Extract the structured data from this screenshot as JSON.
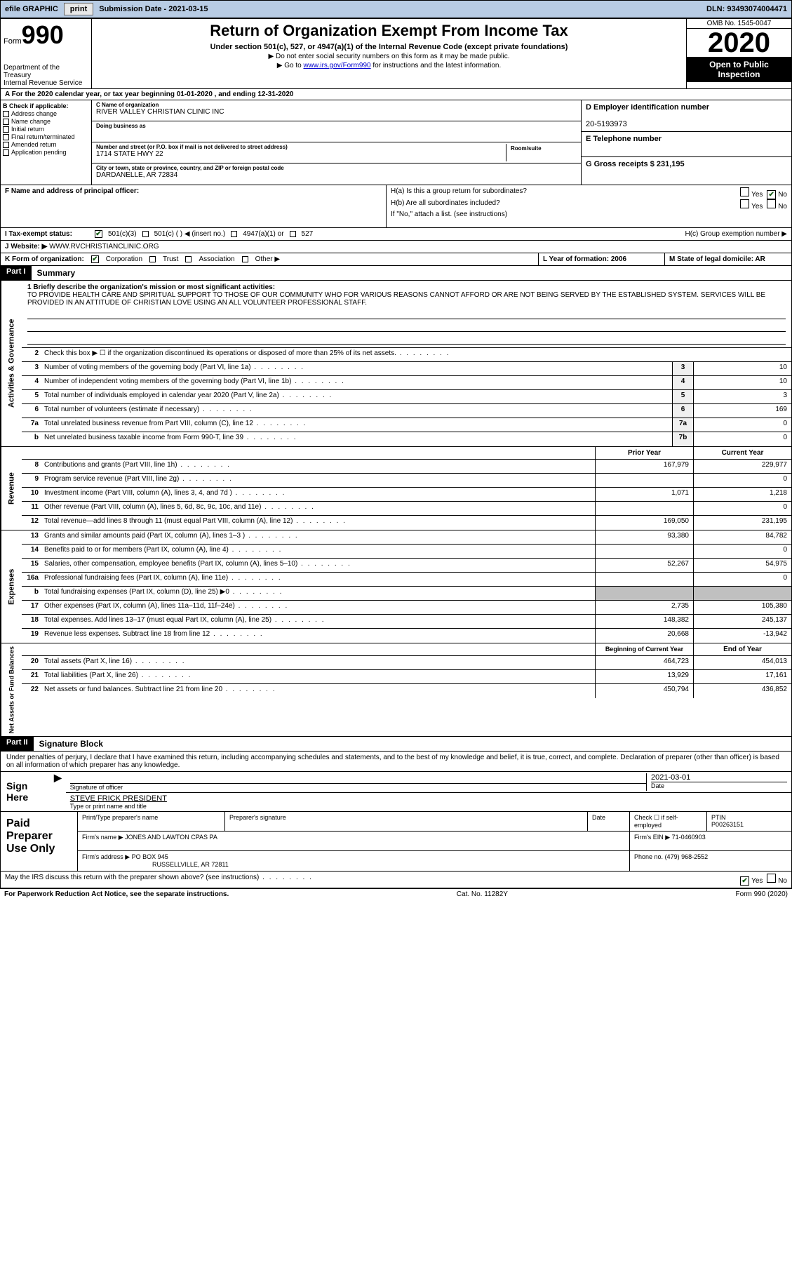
{
  "topbar": {
    "efile": "efile GRAPHIC",
    "print": "print",
    "submission": "Submission Date - 2021-03-15",
    "dln": "DLN: 93493074004471"
  },
  "header": {
    "form_word": "Form",
    "form_num": "990",
    "dept": "Department of the Treasury\nInternal Revenue Service",
    "title": "Return of Organization Exempt From Income Tax",
    "sub": "Under section 501(c), 527, or 4947(a)(1) of the Internal Revenue Code (except private foundations)",
    "line1": "▶ Do not enter social security numbers on this form as it may be made public.",
    "line2_pre": "▶ Go to ",
    "line2_link": "www.irs.gov/Form990",
    "line2_post": " for instructions and the latest information.",
    "omb": "OMB No. 1545-0047",
    "year": "2020",
    "open": "Open to Public Inspection"
  },
  "line_a": "A   For the 2020 calendar year, or tax year beginning 01-01-2020     , and ending 12-31-2020",
  "box_b": {
    "title": "B Check if applicable:",
    "items": [
      "Address change",
      "Name change",
      "Initial return",
      "Final return/terminated",
      "Amended return",
      "Application pending"
    ]
  },
  "box_c": {
    "c_label": "C Name of organization",
    "org": "RIVER VALLEY CHRISTIAN CLINIC INC",
    "dba": "Doing business as",
    "addr_label": "Number and street (or P.O. box if mail is not delivered to street address)",
    "addr": "1714 STATE HWY 22",
    "room_label": "Room/suite",
    "city_label": "City or town, state or province, country, and ZIP or foreign postal code",
    "city": "DARDANELLE, AR  72834"
  },
  "box_d": {
    "label": "D Employer identification number",
    "ein": "20-5193973",
    "e_label": "E Telephone number",
    "g_label": "G Gross receipts $ 231,195"
  },
  "box_f": {
    "label": "F Name and address of principal officer:"
  },
  "box_h": {
    "ha": "H(a)  Is this a group return for subordinates?",
    "hb": "H(b)  Are all subordinates included?",
    "hb_note": "If \"No,\" attach a list. (see instructions)",
    "hc": "H(c)  Group exemption number ▶"
  },
  "tax_status": {
    "label": "I   Tax-exempt status:",
    "opts": [
      "501(c)(3)",
      "501(c) (  ) ◀ (insert no.)",
      "4947(a)(1) or",
      "527"
    ]
  },
  "website": {
    "label": "J   Website: ▶",
    "val": "WWW.RVCHRISTIANCLINIC.ORG"
  },
  "row_k": {
    "k": "K Form of organization:",
    "opts": [
      "Corporation",
      "Trust",
      "Association",
      "Other ▶"
    ],
    "l": "L Year of formation: 2006",
    "m": "M State of legal domicile: AR"
  },
  "part1": {
    "hdr": "Part I",
    "title": "Summary",
    "mission_label": "1   Briefly describe the organization's mission or most significant activities:",
    "mission": "TO PROVIDE HEALTH CARE AND SPIRITUAL SUPPORT TO THOSE OF OUR COMMUNITY WHO FOR VARIOUS REASONS CANNOT AFFORD OR ARE NOT BEING SERVED BY THE ESTABLISHED SYSTEM. SERVICES WILL BE PROVIDED IN AN ATTITUDE OF CHRISTIAN LOVE USING AN ALL VOLUNTEER PROFESSIONAL STAFF.",
    "side1": "Activities & Governance",
    "side2": "Revenue",
    "side3": "Expenses",
    "side4": "Net Assets or Fund Balances",
    "gov_lines": [
      {
        "n": "2",
        "d": "Check this box ▶ ☐  if the organization discontinued its operations or disposed of more than 25% of its net assets.",
        "b": "",
        "v": ""
      },
      {
        "n": "3",
        "d": "Number of voting members of the governing body (Part VI, line 1a)",
        "b": "3",
        "v": "10"
      },
      {
        "n": "4",
        "d": "Number of independent voting members of the governing body (Part VI, line 1b)",
        "b": "4",
        "v": "10"
      },
      {
        "n": "5",
        "d": "Total number of individuals employed in calendar year 2020 (Part V, line 2a)",
        "b": "5",
        "v": "3"
      },
      {
        "n": "6",
        "d": "Total number of volunteers (estimate if necessary)",
        "b": "6",
        "v": "169"
      },
      {
        "n": "7a",
        "d": "Total unrelated business revenue from Part VIII, column (C), line 12",
        "b": "7a",
        "v": "0"
      },
      {
        "n": "b",
        "d": "Net unrelated business taxable income from Form 990-T, line 39",
        "b": "7b",
        "v": "0"
      }
    ],
    "col_hdr": {
      "py": "Prior Year",
      "cy": "Current Year"
    },
    "rev_lines": [
      {
        "n": "8",
        "d": "Contributions and grants (Part VIII, line 1h)",
        "py": "167,979",
        "cy": "229,977"
      },
      {
        "n": "9",
        "d": "Program service revenue (Part VIII, line 2g)",
        "py": "",
        "cy": "0"
      },
      {
        "n": "10",
        "d": "Investment income (Part VIII, column (A), lines 3, 4, and 7d )",
        "py": "1,071",
        "cy": "1,218"
      },
      {
        "n": "11",
        "d": "Other revenue (Part VIII, column (A), lines 5, 6d, 8c, 9c, 10c, and 11e)",
        "py": "",
        "cy": "0"
      },
      {
        "n": "12",
        "d": "Total revenue—add lines 8 through 11 (must equal Part VIII, column (A), line 12)",
        "py": "169,050",
        "cy": "231,195"
      }
    ],
    "exp_lines": [
      {
        "n": "13",
        "d": "Grants and similar amounts paid (Part IX, column (A), lines 1–3 )",
        "py": "93,380",
        "cy": "84,782"
      },
      {
        "n": "14",
        "d": "Benefits paid to or for members (Part IX, column (A), line 4)",
        "py": "",
        "cy": "0"
      },
      {
        "n": "15",
        "d": "Salaries, other compensation, employee benefits (Part IX, column (A), lines 5–10)",
        "py": "52,267",
        "cy": "54,975"
      },
      {
        "n": "16a",
        "d": "Professional fundraising fees (Part IX, column (A), line 11e)",
        "py": "",
        "cy": "0"
      },
      {
        "n": "b",
        "d": "Total fundraising expenses (Part IX, column (D), line 25) ▶0",
        "py": "shaded",
        "cy": "shaded"
      },
      {
        "n": "17",
        "d": "Other expenses (Part IX, column (A), lines 11a–11d, 11f–24e)",
        "py": "2,735",
        "cy": "105,380"
      },
      {
        "n": "18",
        "d": "Total expenses. Add lines 13–17 (must equal Part IX, column (A), line 25)",
        "py": "148,382",
        "cy": "245,137"
      },
      {
        "n": "19",
        "d": "Revenue less expenses. Subtract line 18 from line 12",
        "py": "20,668",
        "cy": "-13,942"
      }
    ],
    "net_hdr": {
      "b": "Beginning of Current Year",
      "e": "End of Year"
    },
    "net_lines": [
      {
        "n": "20",
        "d": "Total assets (Part X, line 16)",
        "py": "464,723",
        "cy": "454,013"
      },
      {
        "n": "21",
        "d": "Total liabilities (Part X, line 26)",
        "py": "13,929",
        "cy": "17,161"
      },
      {
        "n": "22",
        "d": "Net assets or fund balances. Subtract line 21 from line 20",
        "py": "450,794",
        "cy": "436,852"
      }
    ]
  },
  "part2": {
    "hdr": "Part II",
    "title": "Signature Block",
    "text": "Under penalties of perjury, I declare that I have examined this return, including accompanying schedules and statements, and to the best of my knowledge and belief, it is true, correct, and complete. Declaration of preparer (other than officer) is based on all information of which preparer has any knowledge.",
    "sign": "Sign Here",
    "sig_officer": "Signature of officer",
    "sig_date": "2021-03-01",
    "date_lbl": "Date",
    "name": "STEVE FRICK PRESIDENT",
    "name_lbl": "Type or print name and title"
  },
  "preparer": {
    "label": "Paid Preparer Use Only",
    "h1": "Print/Type preparer's name",
    "h2": "Preparer's signature",
    "h3": "Date",
    "h4a": "Check ☐ if self-employed",
    "h4b": "PTIN",
    "ptin": "P00263151",
    "firm_lbl": "Firm's name     ▶",
    "firm": "JONES AND LAWTON CPAS PA",
    "ein_lbl": "Firm's EIN ▶",
    "ein": "71-0460903",
    "addr_lbl": "Firm's address ▶",
    "addr1": "PO BOX 945",
    "addr2": "RUSSELLVILLE, AR  72811",
    "phone_lbl": "Phone no.",
    "phone": "(479) 968-2552"
  },
  "discuss": "May the IRS discuss this return with the preparer shown above? (see instructions)",
  "footer": {
    "left": "For Paperwork Reduction Act Notice, see the separate instructions.",
    "mid": "Cat. No. 11282Y",
    "right": "Form 990 (2020)"
  },
  "yn": {
    "yes": "Yes",
    "no": "No"
  }
}
